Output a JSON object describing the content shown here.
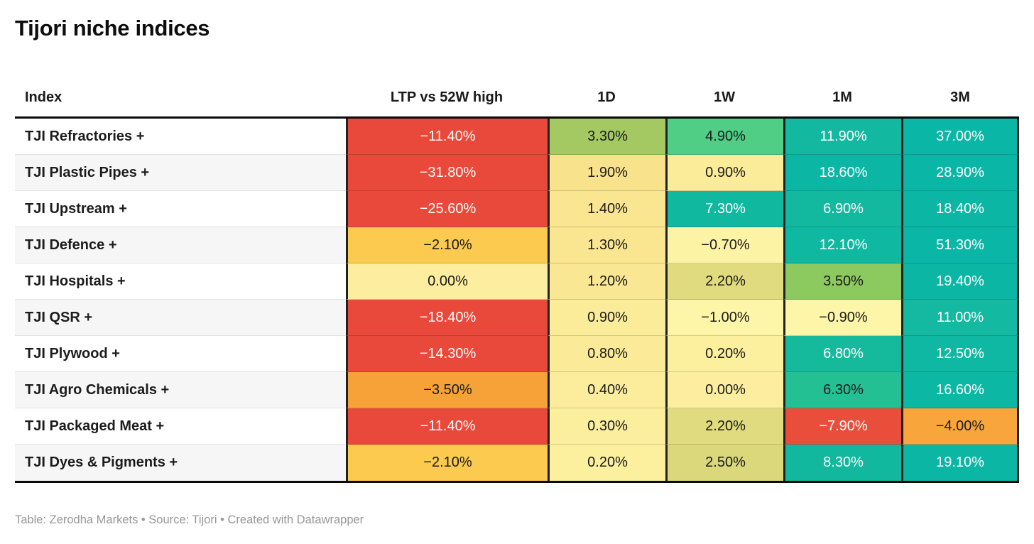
{
  "chart_data": {
    "type": "table",
    "title": "Tijori niche indices",
    "columns": [
      "Index",
      "LTP vs 52W high",
      "1D",
      "1W",
      "1M",
      "3M"
    ],
    "rows": [
      {
        "label": "TJI Refractories +",
        "cells": [
          {
            "text": "−11.40%",
            "bg": "#e8493a",
            "fg": "#ffffff"
          },
          {
            "text": "3.30%",
            "bg": "#a4c963",
            "fg": "#1a1a1a"
          },
          {
            "text": "4.90%",
            "bg": "#50ce86",
            "fg": "#1a1a1a"
          },
          {
            "text": "11.90%",
            "bg": "#12b9a0",
            "fg": "#ffffff"
          },
          {
            "text": "37.00%",
            "bg": "#0ab6a6",
            "fg": "#ffffff"
          }
        ]
      },
      {
        "label": "TJI Plastic Pipes +",
        "cells": [
          {
            "text": "−31.80%",
            "bg": "#e8493a",
            "fg": "#ffffff"
          },
          {
            "text": "1.90%",
            "bg": "#f9e28c",
            "fg": "#1a1a1a"
          },
          {
            "text": "0.90%",
            "bg": "#fbec9a",
            "fg": "#1a1a1a"
          },
          {
            "text": "18.60%",
            "bg": "#0bb6a4",
            "fg": "#ffffff"
          },
          {
            "text": "28.90%",
            "bg": "#0ab6a6",
            "fg": "#ffffff"
          }
        ]
      },
      {
        "label": "TJI Upstream +",
        "cells": [
          {
            "text": "−25.60%",
            "bg": "#e8493a",
            "fg": "#ffffff"
          },
          {
            "text": "1.40%",
            "bg": "#fae590",
            "fg": "#1a1a1a"
          },
          {
            "text": "7.30%",
            "bg": "#10b89f",
            "fg": "#ffffff"
          },
          {
            "text": "6.90%",
            "bg": "#13b99e",
            "fg": "#ffffff"
          },
          {
            "text": "18.40%",
            "bg": "#0bb6a4",
            "fg": "#ffffff"
          }
        ]
      },
      {
        "label": "TJI Defence +",
        "cells": [
          {
            "text": "−2.10%",
            "bg": "#fbca4f",
            "fg": "#1a1a1a"
          },
          {
            "text": "1.30%",
            "bg": "#fae691",
            "fg": "#1a1a1a"
          },
          {
            "text": "−0.70%",
            "bg": "#fdf3a5",
            "fg": "#1a1a1a"
          },
          {
            "text": "12.10%",
            "bg": "#0fb8a1",
            "fg": "#ffffff"
          },
          {
            "text": "51.30%",
            "bg": "#0ab6a6",
            "fg": "#ffffff"
          }
        ]
      },
      {
        "label": "TJI Hospitals +",
        "cells": [
          {
            "text": "0.00%",
            "bg": "#fcee9e",
            "fg": "#1a1a1a"
          },
          {
            "text": "1.20%",
            "bg": "#fae793",
            "fg": "#1a1a1a"
          },
          {
            "text": "2.20%",
            "bg": "#e1db80",
            "fg": "#1a1a1a"
          },
          {
            "text": "3.50%",
            "bg": "#8cc95f",
            "fg": "#1a1a1a"
          },
          {
            "text": "19.40%",
            "bg": "#0bb6a4",
            "fg": "#ffffff"
          }
        ]
      },
      {
        "label": "TJI QSR +",
        "cells": [
          {
            "text": "−18.40%",
            "bg": "#e8493a",
            "fg": "#ffffff"
          },
          {
            "text": "0.90%",
            "bg": "#fbec9a",
            "fg": "#1a1a1a"
          },
          {
            "text": "−1.00%",
            "bg": "#fdf5a8",
            "fg": "#1a1a1a"
          },
          {
            "text": "−0.90%",
            "bg": "#fdf5a7",
            "fg": "#1a1a1a"
          },
          {
            "text": "11.00%",
            "bg": "#13b9a0",
            "fg": "#ffffff"
          }
        ]
      },
      {
        "label": "TJI Plywood +",
        "cells": [
          {
            "text": "−14.30%",
            "bg": "#e8493a",
            "fg": "#ffffff"
          },
          {
            "text": "0.80%",
            "bg": "#fbea97",
            "fg": "#1a1a1a"
          },
          {
            "text": "0.20%",
            "bg": "#fcf09e",
            "fg": "#1a1a1a"
          },
          {
            "text": "6.80%",
            "bg": "#15b99c",
            "fg": "#ffffff"
          },
          {
            "text": "12.50%",
            "bg": "#0eb8a2",
            "fg": "#ffffff"
          }
        ]
      },
      {
        "label": "TJI Agro Chemicals +",
        "cells": [
          {
            "text": "−3.50%",
            "bg": "#f7a238",
            "fg": "#1a1a1a"
          },
          {
            "text": "0.40%",
            "bg": "#fbed9c",
            "fg": "#1a1a1a"
          },
          {
            "text": "0.00%",
            "bg": "#fcee9e",
            "fg": "#1a1a1a"
          },
          {
            "text": "6.30%",
            "bg": "#23c094",
            "fg": "#1a1a1a"
          },
          {
            "text": "16.60%",
            "bg": "#0cb7a3",
            "fg": "#ffffff"
          }
        ]
      },
      {
        "label": "TJI Packaged Meat +",
        "cells": [
          {
            "text": "−11.40%",
            "bg": "#e8493a",
            "fg": "#ffffff"
          },
          {
            "text": "0.30%",
            "bg": "#fbee9d",
            "fg": "#1a1a1a"
          },
          {
            "text": "2.20%",
            "bg": "#e1db80",
            "fg": "#1a1a1a"
          },
          {
            "text": "−7.90%",
            "bg": "#e94e3b",
            "fg": "#ffffff"
          },
          {
            "text": "−4.00%",
            "bg": "#f8a63c",
            "fg": "#1a1a1a"
          }
        ]
      },
      {
        "label": "TJI Dyes & Pigments +",
        "cells": [
          {
            "text": "−2.10%",
            "bg": "#fbca4f",
            "fg": "#1a1a1a"
          },
          {
            "text": "0.20%",
            "bg": "#fcf09e",
            "fg": "#1a1a1a"
          },
          {
            "text": "2.50%",
            "bg": "#dbd87b",
            "fg": "#1a1a1a"
          },
          {
            "text": "8.30%",
            "bg": "#11b89e",
            "fg": "#ffffff"
          },
          {
            "text": "19.10%",
            "bg": "#0bb6a4",
            "fg": "#ffffff"
          }
        ]
      }
    ],
    "footer_note": "Table: Zerodha Markets • Source: Tijori • Created with Datawrapper",
    "layout": {
      "legend_position": "none",
      "grid": "heatmap-cells",
      "negative_color": "#e8493a",
      "neutral_color": "#fcee9e",
      "positive_color": "#0ab6a6",
      "striped_row_color": "#f6f6f6",
      "rule_color": "#0a0a0a"
    }
  }
}
